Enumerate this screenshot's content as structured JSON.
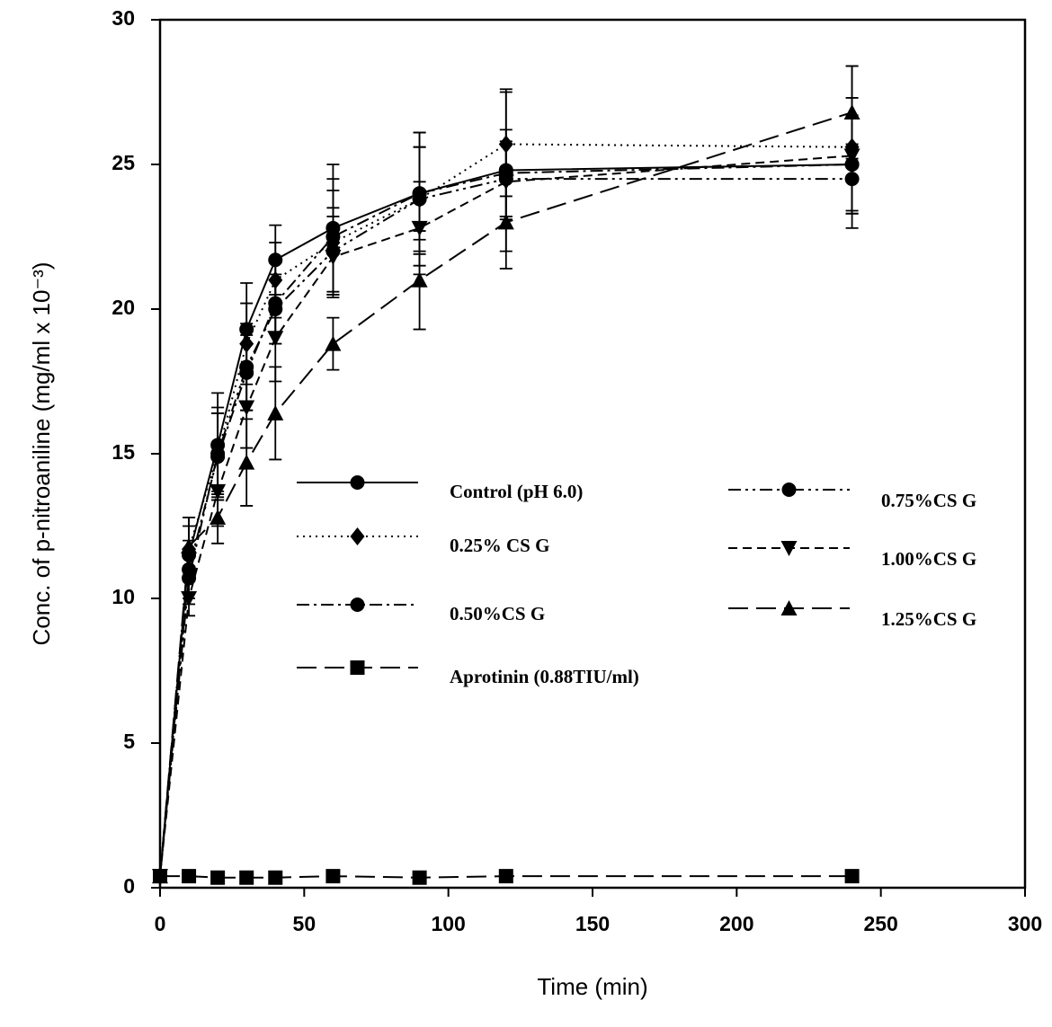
{
  "chart_data": {
    "type": "line",
    "x_label": "Time (min)",
    "y_label": "Conc. of p-nitroaniline (mg/ml  x 10⁻³)",
    "x": [
      0,
      10,
      20,
      30,
      40,
      60,
      90,
      120,
      240
    ],
    "xlim": [
      0,
      300
    ],
    "xticks": [
      0,
      50,
      100,
      150,
      200,
      250,
      300
    ],
    "ylim": [
      0,
      30
    ],
    "yticks": [
      0,
      5,
      10,
      15,
      20,
      25,
      30
    ],
    "series": [
      {
        "name": "Control (pH 6.0)",
        "color": "#000000",
        "line_style": "solid",
        "marker": "circle",
        "values": [
          0.4,
          11.5,
          15.3,
          19.3,
          21.7,
          22.8,
          24.0,
          24.8,
          25.0
        ],
        "errors": [
          0,
          1.3,
          1.8,
          1.6,
          1.2,
          2.2,
          2.1,
          2.8,
          1.7
        ]
      },
      {
        "name": "0.25% CS G",
        "color": "#000000",
        "line_style": "dotted",
        "marker": "diamond",
        "values": [
          0.4,
          11.7,
          15.0,
          18.8,
          21.0,
          22.3,
          23.8,
          25.7,
          25.6
        ],
        "errors": [
          0,
          1.1,
          1.6,
          1.4,
          1.3,
          1.8,
          2.3,
          1.8,
          2.8
        ]
      },
      {
        "name": "0.50%CS G",
        "color": "#000000",
        "line_style": "dashdot",
        "marker": "circle",
        "values": [
          0.4,
          11.0,
          14.9,
          17.8,
          20.2,
          22.5,
          24.0,
          24.7,
          25.0
        ],
        "errors": [
          0,
          1.0,
          1.5,
          1.3,
          1.4,
          2.0,
          1.6,
          1.5,
          1.6
        ]
      },
      {
        "name": "Aprotinin (0.88TIU/ml)",
        "color": "#000000",
        "line_style": "longdash",
        "marker": "square",
        "values": [
          0.4,
          0.4,
          0.35,
          0.35,
          0.35,
          0.4,
          0.35,
          0.4,
          0.4
        ]
      },
      {
        "name": "0.75%CS G",
        "color": "#000000",
        "line_style": "dashdotdot",
        "marker": "circle",
        "values": [
          0.4,
          10.7,
          15.0,
          18.0,
          20.0,
          22.0,
          23.8,
          24.5,
          24.5
        ],
        "errors": [
          0,
          0.9,
          1.4,
          1.5,
          1.2,
          1.5,
          1.8,
          1.3,
          1.2
        ]
      },
      {
        "name": "1.00%CS G",
        "color": "#000000",
        "line_style": "dashed",
        "marker": "triangle-down",
        "values": [
          0.4,
          10.0,
          13.7,
          16.6,
          19.0,
          21.8,
          22.8,
          24.4,
          25.3
        ],
        "errors": [
          0,
          0.6,
          1.2,
          1.4,
          1.5,
          1.4,
          1.6,
          1.3,
          2.0
        ]
      },
      {
        "name": "1.25%CS G",
        "color": "#000000",
        "line_style": "longdash",
        "marker": "triangle-up",
        "values": [
          0.4,
          11.8,
          12.8,
          14.7,
          16.4,
          18.8,
          21.0,
          23.0,
          26.8
        ],
        "errors": [
          0,
          0.7,
          0.9,
          1.5,
          1.6,
          0.9,
          1.7,
          1.6,
          1.6
        ]
      }
    ]
  }
}
